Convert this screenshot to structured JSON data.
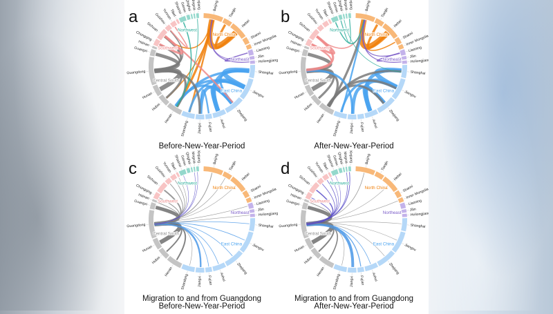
{
  "provinces": [
    {
      "name": "Beijing",
      "region": "north",
      "total": 9
    },
    {
      "name": "Tianjin",
      "region": "north",
      "total": 4
    },
    {
      "name": "Hebei",
      "region": "north",
      "total": 8
    },
    {
      "name": "Shanxi",
      "region": "north",
      "total": 3
    },
    {
      "name": "Inner Mongolia",
      "region": "north",
      "total": 2
    },
    {
      "name": "Liaoning",
      "region": "northeast",
      "total": 2.5
    },
    {
      "name": "Jilin",
      "region": "northeast",
      "total": 1.5
    },
    {
      "name": "Heilongjiang",
      "region": "northeast",
      "total": 1.5
    },
    {
      "name": "Shanghai",
      "region": "east",
      "total": 6
    },
    {
      "name": "Jiangsu",
      "region": "east",
      "total": 10
    },
    {
      "name": "Zhejiang",
      "region": "east",
      "total": 9
    },
    {
      "name": "Anhui",
      "region": "east",
      "total": 6
    },
    {
      "name": "Fujian",
      "region": "east",
      "total": 3
    },
    {
      "name": "Jiangxi",
      "region": "east",
      "total": 4
    },
    {
      "name": "Shandong",
      "region": "east",
      "total": 6
    },
    {
      "name": "Henan",
      "region": "central",
      "total": 7
    },
    {
      "name": "Hubei",
      "region": "central",
      "total": 5
    },
    {
      "name": "Hunan",
      "region": "central",
      "total": 5
    },
    {
      "name": "Guangdong",
      "region": "central",
      "total": 13
    },
    {
      "name": "Guangxi",
      "region": "central",
      "total": 3
    },
    {
      "name": "Hainan",
      "region": "central",
      "total": 1
    },
    {
      "name": "Chongqing",
      "region": "southwest",
      "total": 3
    },
    {
      "name": "Sichuan",
      "region": "southwest",
      "total": 5
    },
    {
      "name": "Guizhou",
      "region": "southwest",
      "total": 2.5
    },
    {
      "name": "Yunnan",
      "region": "southwest",
      "total": 2.5
    },
    {
      "name": "Tibet",
      "region": "southwest",
      "total": 1
    },
    {
      "name": "Shaanxi",
      "region": "northwest",
      "total": 3
    },
    {
      "name": "Gansu",
      "region": "northwest",
      "total": 1.5
    },
    {
      "name": "Qinghai",
      "region": "northwest",
      "total": 0.7
    },
    {
      "name": "Ningxia",
      "region": "northwest",
      "total": 0.7
    },
    {
      "name": "Xinjiang",
      "region": "northwest",
      "total": 1.2
    }
  ],
  "regions": {
    "north": {
      "label": "North China",
      "color": "#f07f09",
      "light": "#f8b878"
    },
    "northeast": {
      "label": "Northeast",
      "color": "#7b5cc8",
      "light": "#c3b2ea"
    },
    "east": {
      "label": "East China",
      "color": "#4aa3f0",
      "light": "#b5d8f8"
    },
    "central": {
      "label": "Central South",
      "color": "#7a7a7a",
      "light": "#c4c4c4"
    },
    "southwest": {
      "label": "Southwest",
      "color": "#ee8a8a",
      "light": "#f8c4c4"
    },
    "northwest": {
      "label": "Northwest",
      "color": "#2fae9c",
      "light": "#94d8cc"
    }
  },
  "panels": [
    {
      "letter": "a",
      "caption": [
        "Before-New-Year-Period"
      ],
      "mode": "all",
      "flows": [
        [
          "Beijing",
          "Hebei",
          5
        ],
        [
          "Beijing",
          "Henan",
          2
        ],
        [
          "Beijing",
          "Shandong",
          1.5
        ],
        [
          "Beijing",
          "Hubei",
          1
        ],
        [
          "Tianjin",
          "Hebei",
          2
        ],
        [
          "Beijing",
          "Sichuan",
          1
        ],
        [
          "Shanghai",
          "Jiangsu",
          4
        ],
        [
          "Shanghai",
          "Anhui",
          3
        ],
        [
          "Shanghai",
          "Zhejiang",
          2
        ],
        [
          "Jiangsu",
          "Anhui",
          4
        ],
        [
          "Zhejiang",
          "Jiangxi",
          3
        ],
        [
          "Zhejiang",
          "Anhui",
          3
        ],
        [
          "Jiangsu",
          "Shandong",
          2
        ],
        [
          "Shanghai",
          "Henan",
          2
        ],
        [
          "Zhejiang",
          "Henan",
          2
        ],
        [
          "Jiangsu",
          "Henan",
          2
        ],
        [
          "Fujian",
          "Jiangxi",
          1.5
        ],
        [
          "Guangdong",
          "Hunan",
          4
        ],
        [
          "Guangdong",
          "Guangxi",
          3
        ],
        [
          "Guangdong",
          "Hubei",
          2
        ],
        [
          "Guangdong",
          "Sichuan",
          2
        ],
        [
          "Guangdong",
          "Henan",
          2
        ],
        [
          "Guangdong",
          "Jiangxi",
          2
        ],
        [
          "Guangdong",
          "Chongqing",
          1.5
        ],
        [
          "Guangdong",
          "Guizhou",
          1
        ],
        [
          "Sichuan",
          "Chongqing",
          2
        ],
        [
          "Sichuan",
          "Zhejiang",
          1.5
        ],
        [
          "Yunnan",
          "Guizhou",
          1
        ],
        [
          "Shaanxi",
          "Henan",
          1
        ],
        [
          "Xinjiang",
          "Henan",
          0.6
        ],
        [
          "Liaoning",
          "Jilin",
          1
        ],
        [
          "Heilongjiang",
          "Beijing",
          0.8
        ],
        [
          "Jilin",
          "Beijing",
          0.6
        ]
      ]
    },
    {
      "letter": "b",
      "caption": [
        "After-New-Year-Period"
      ],
      "mode": "all",
      "flows": [
        [
          "Hebei",
          "Beijing",
          5
        ],
        [
          "Henan",
          "Beijing",
          2
        ],
        [
          "Shandong",
          "Beijing",
          1.5
        ],
        [
          "Hebei",
          "Tianjin",
          2
        ],
        [
          "Sichuan",
          "Beijing",
          1
        ],
        [
          "Shanxi",
          "Beijing",
          1
        ],
        [
          "Jiangsu",
          "Shanghai",
          4
        ],
        [
          "Anhui",
          "Shanghai",
          3
        ],
        [
          "Anhui",
          "Jiangsu",
          4
        ],
        [
          "Jiangxi",
          "Zhejiang",
          3
        ],
        [
          "Anhui",
          "Zhejiang",
          3
        ],
        [
          "Henan",
          "Shanghai",
          2
        ],
        [
          "Henan",
          "Zhejiang",
          2
        ],
        [
          "Shandong",
          "Jiangsu",
          2
        ],
        [
          "Henan",
          "Jiangsu",
          2
        ],
        [
          "Hunan",
          "Guangdong",
          4
        ],
        [
          "Guangxi",
          "Guangdong",
          3
        ],
        [
          "Hubei",
          "Guangdong",
          2
        ],
        [
          "Sichuan",
          "Guangdong",
          2
        ],
        [
          "Henan",
          "Guangdong",
          2
        ],
        [
          "Jiangxi",
          "Guangdong",
          2
        ],
        [
          "Chongqing",
          "Guangdong",
          1.5
        ],
        [
          "Chongqing",
          "Sichuan",
          2
        ],
        [
          "Shaanxi",
          "Beijing",
          1
        ],
        [
          "Gansu",
          "Xinjiang",
          0.8
        ],
        [
          "Qinghai",
          "Shanghai",
          0.5
        ],
        [
          "Jilin",
          "Liaoning",
          1
        ],
        [
          "Heilongjiang",
          "Beijing",
          0.8
        ],
        [
          "Liaoning",
          "Beijing",
          0.8
        ]
      ]
    },
    {
      "letter": "c",
      "caption": [
        "Migration to and from Guangdong",
        "Before-New-Year-Period"
      ],
      "mode": "guangdong",
      "flows": [
        [
          "Guangdong",
          "Hunan",
          3
        ],
        [
          "Guangdong",
          "Guangxi",
          2.5
        ],
        [
          "Guangdong",
          "Hubei",
          1
        ],
        [
          "Guangdong",
          "Henan",
          1
        ],
        [
          "Guangdong",
          "Jiangxi",
          1.2
        ],
        [
          "Guangdong",
          "Sichuan",
          1
        ],
        [
          "Guangdong",
          "Chongqing",
          0.6
        ],
        [
          "Guangdong",
          "Guizhou",
          0.5
        ],
        [
          "Guangdong",
          "Yunnan",
          0.4
        ],
        [
          "Guangdong",
          "Hainan",
          0.4
        ],
        [
          "Guangdong",
          "Beijing",
          0.5
        ],
        [
          "Guangdong",
          "Shanghai",
          0.4
        ],
        [
          "Guangdong",
          "Jiangsu",
          0.4
        ],
        [
          "Guangdong",
          "Zhejiang",
          0.4
        ],
        [
          "Guangdong",
          "Anhui",
          0.4
        ],
        [
          "Guangdong",
          "Fujian",
          0.4
        ],
        [
          "Guangdong",
          "Shandong",
          0.3
        ],
        [
          "Guangdong",
          "Hebei",
          0.3
        ],
        [
          "Guangdong",
          "Tianjin",
          0.3
        ],
        [
          "Guangdong",
          "Xinjiang",
          0.3
        ],
        [
          "Guangdong",
          "Ningxia",
          0.3
        ],
        [
          "Guangdong",
          "Shaanxi",
          0.3
        ],
        [
          "Guangdong",
          "Tibet",
          0.2
        ],
        [
          "Guangdong",
          "Liaoning",
          0.2
        ],
        [
          "Guangdong",
          "Heilongjiang",
          0.2
        ]
      ]
    },
    {
      "letter": "d",
      "caption": [
        "Migration to and from Guangdong",
        "After-New-Year-Period"
      ],
      "mode": "guangdong",
      "flows": [
        [
          "Hunan",
          "Guangdong",
          3
        ],
        [
          "Guangxi",
          "Guangdong",
          2.5
        ],
        [
          "Hubei",
          "Guangdong",
          1
        ],
        [
          "Henan",
          "Guangdong",
          0.8
        ],
        [
          "Jiangxi",
          "Guangdong",
          2
        ],
        [
          "Fujian",
          "Guangdong",
          0.6
        ],
        [
          "Anhui",
          "Guangdong",
          0.4
        ],
        [
          "Shandong",
          "Guangdong",
          0.3
        ],
        [
          "Sichuan",
          "Guangdong",
          0.8
        ],
        [
          "Chongqing",
          "Guangdong",
          0.5
        ],
        [
          "Guizhou",
          "Guangdong",
          0.4
        ],
        [
          "Yunnan",
          "Guangdong",
          0.4
        ],
        [
          "Hainan",
          "Guangdong",
          0.4
        ],
        [
          "Beijing",
          "Guangdong",
          0.4
        ],
        [
          "Shanghai",
          "Guangdong",
          0.3
        ],
        [
          "Jiangsu",
          "Guangdong",
          0.3
        ],
        [
          "Zhejiang",
          "Guangdong",
          0.3
        ],
        [
          "Hebei",
          "Guangdong",
          0.3
        ],
        [
          "Inner Mongolia",
          "Guangdong",
          0.3
        ],
        [
          "Xinjiang",
          "Guangdong",
          0.5
        ],
        [
          "Ningxia",
          "Guangdong",
          0.4
        ],
        [
          "Shaanxi",
          "Guangdong",
          0.3
        ],
        [
          "Tibet",
          "Guangdong",
          0.2
        ]
      ]
    }
  ]
}
